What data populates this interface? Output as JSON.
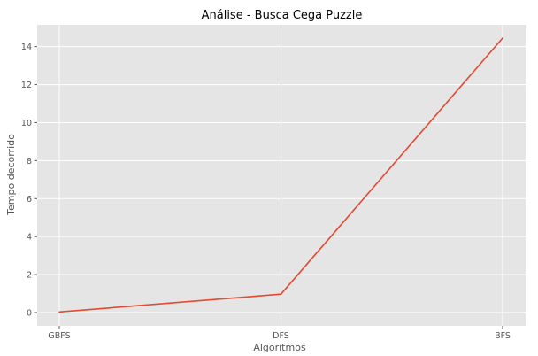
{
  "chart_data": {
    "type": "line",
    "title": "Análise - Busca Cega Puzzle",
    "xlabel": "Algoritmos",
    "ylabel": "Tempo decorrido",
    "categories": [
      "GBFS",
      "DFS",
      "BFS"
    ],
    "series": [
      {
        "values": [
          0.03,
          0.97,
          14.45
        ],
        "color": "#e24a33"
      }
    ],
    "ylim": [
      -0.7,
      15.15
    ],
    "yticks": [
      0,
      2,
      4,
      6,
      8,
      10,
      12,
      14
    ],
    "grid": true,
    "legend": "none",
    "background_color": "#e5e5e5"
  }
}
